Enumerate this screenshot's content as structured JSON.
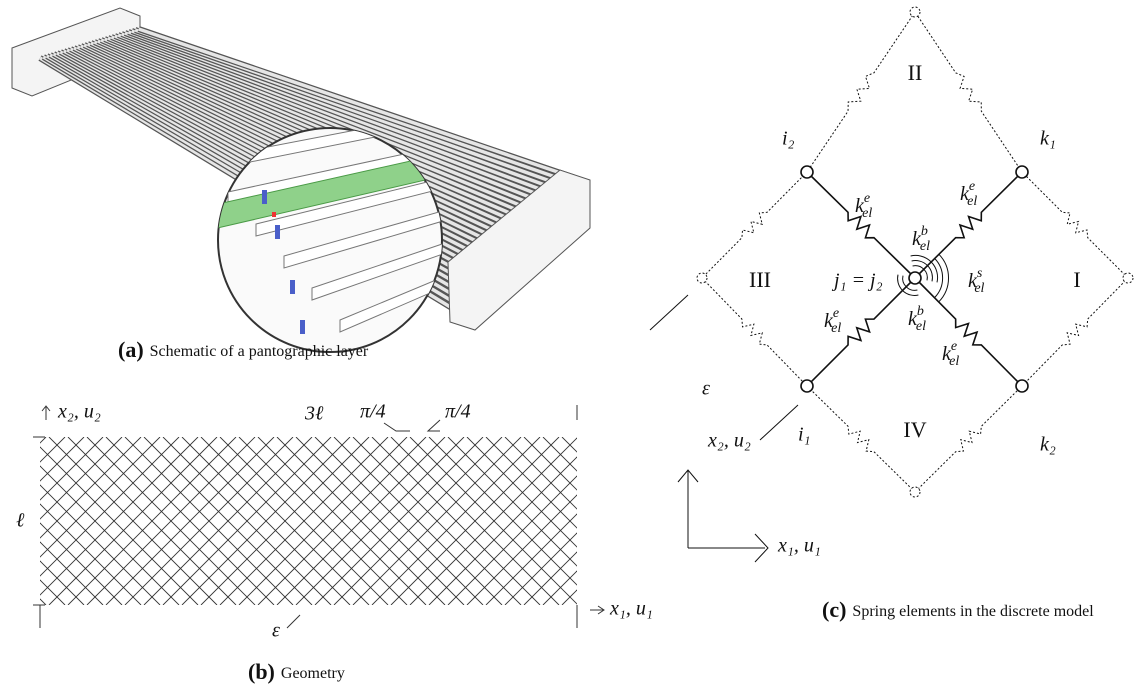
{
  "panel_a": {
    "label": "(a)",
    "caption": "Schematic of a pantographic layer"
  },
  "panel_b": {
    "label": "(b)",
    "caption": "Geometry",
    "axis_y": "x₂, u₂",
    "axis_x": "x₁, u₁",
    "width_label": "3ℓ",
    "angle_left": "π/4",
    "angle_right": "π/4",
    "height_label": "ℓ",
    "epsilon": "ε"
  },
  "panel_c": {
    "label": "(c)",
    "caption": "Spring elements in the discrete model",
    "regions": [
      "II",
      "III",
      "I",
      "IV"
    ],
    "nodes": {
      "i2": "i₂",
      "k1": "k₁",
      "i1": "i₁",
      "k2": "k₂",
      "center": "j₁ = j₂"
    },
    "springs": [
      {
        "k": "k",
        "sup": "e",
        "sub": "el"
      },
      {
        "k": "k",
        "sup": "e",
        "sub": "el"
      },
      {
        "k": "k",
        "sup": "b",
        "sub": "el"
      },
      {
        "k": "k",
        "sup": "s",
        "sub": "el"
      },
      {
        "k": "k",
        "sup": "e",
        "sub": "el"
      },
      {
        "k": "k",
        "sup": "b",
        "sub": "el"
      },
      {
        "k": "k",
        "sup": "e",
        "sub": "el"
      }
    ],
    "epsilon": "ε",
    "axis_y": "x₂, u₂",
    "axis_x": "x₁, u₁"
  }
}
